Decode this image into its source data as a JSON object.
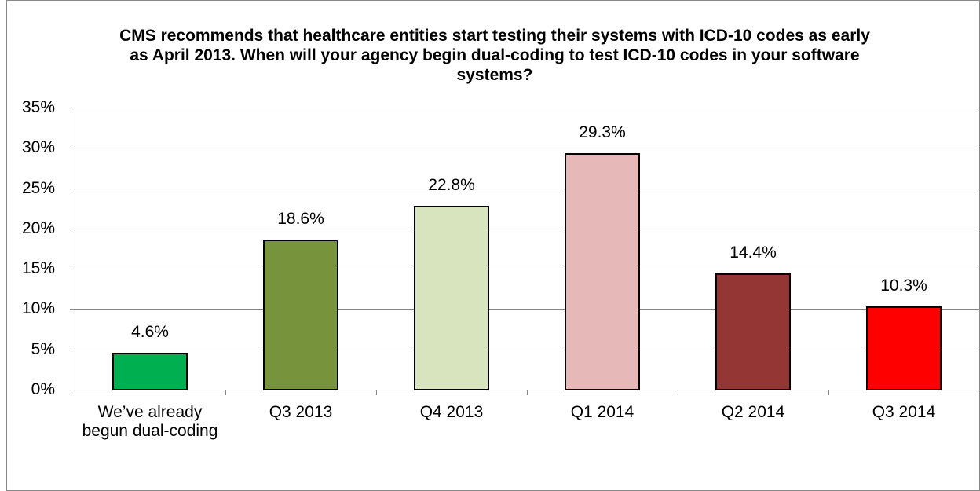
{
  "chart_data": {
    "type": "bar",
    "title": "CMS recommends that healthcare entities start testing their systems with ICD-10 codes as early as April 2013. When will your agency begin dual-coding to test ICD-10 codes in your software systems?",
    "categories": [
      "We’ve already begun dual-coding",
      "Q3 2013",
      "Q4 2013",
      "Q1 2014",
      "Q2 2014",
      "Q3 2014"
    ],
    "values": [
      4.6,
      18.6,
      22.8,
      29.3,
      14.4,
      10.3
    ],
    "value_labels": [
      "4.6%",
      "18.6%",
      "22.8%",
      "29.3%",
      "14.4%",
      "10.3%"
    ],
    "colors": [
      "#00b050",
      "#77933c",
      "#d7e4bd",
      "#e6b9b8",
      "#943634",
      "#ff0000"
    ],
    "ylim": [
      0,
      35
    ],
    "yticks": [
      {
        "value": 0,
        "label": "0%"
      },
      {
        "value": 5,
        "label": "5%"
      },
      {
        "value": 10,
        "label": "10%"
      },
      {
        "value": 15,
        "label": "15%"
      },
      {
        "value": 20,
        "label": "20%"
      },
      {
        "value": 25,
        "label": "25%"
      },
      {
        "value": 30,
        "label": "30%"
      },
      {
        "value": 35,
        "label": "35%"
      }
    ],
    "grid": true
  }
}
